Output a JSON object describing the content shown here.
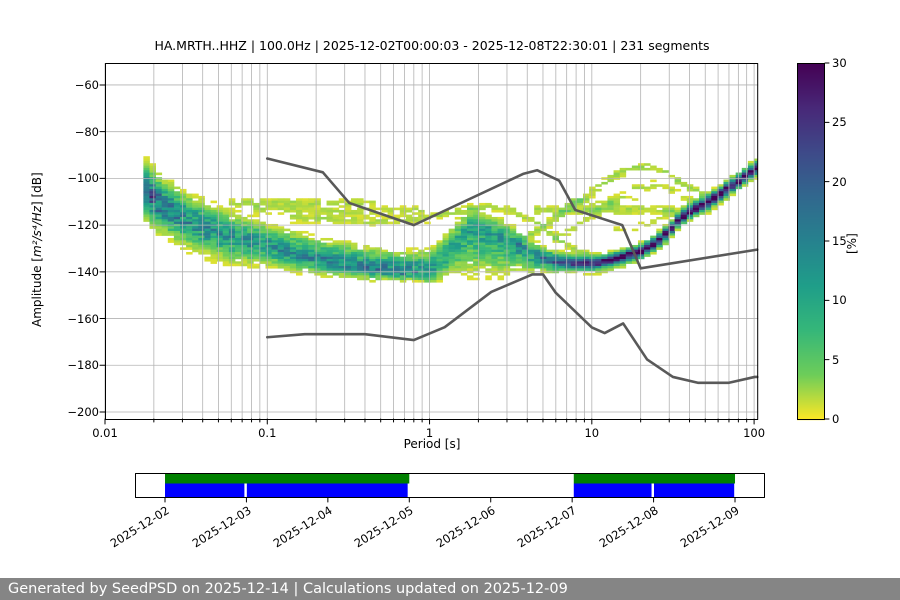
{
  "header": {
    "title": "HA.MRTH..HHZ | 100.0Hz | 2025-12-02T00:00:03 - 2025-12-08T22:30:01 | 231 segments"
  },
  "axes": {
    "xlabel": "Period [s]",
    "ylabel_prefix": "Amplitude [",
    "ylabel_math": "m²/s⁴/Hz",
    "ylabel_suffix": "] [dB]",
    "x_tick_values": [
      0.01,
      0.1,
      1,
      10,
      100
    ],
    "x_tick_labels": [
      "0.01",
      "0.1",
      "1",
      "10",
      "100"
    ],
    "y_tick_values": [
      -60,
      -80,
      -100,
      -120,
      -140,
      -160,
      -180,
      -200
    ],
    "y_tick_labels": [
      "−60",
      "−80",
      "−100",
      "−120",
      "−140",
      "−160",
      "−180",
      "−200"
    ],
    "grid_color": "#b3b3b3"
  },
  "colorbar": {
    "label": "[%]",
    "tick_values": [
      0,
      5,
      10,
      15,
      20,
      25,
      30
    ],
    "tick_labels": [
      "0",
      "5",
      "10",
      "15",
      "20",
      "25",
      "30"
    ],
    "min": 0,
    "max": 30,
    "colormap": "viridis_r"
  },
  "chart_data": {
    "type": "heatmap",
    "title": "HA.MRTH..HHZ | 100.0Hz | 2025-12-02T00:00:03 - 2025-12-08T22:30:01 | 231 segments",
    "xlabel": "Period [s]",
    "ylabel": "Amplitude [m²/s⁴/Hz] [dB]",
    "x_scale": "log",
    "xlim": [
      0.01,
      106
    ],
    "ylim": [
      -203,
      -50.6
    ],
    "grid": true,
    "probability_range_percent": [
      0,
      30
    ],
    "noise_model_color": "#595959",
    "noise_models": {
      "nhnm": [
        [
          0.1,
          -91.5
        ],
        [
          0.22,
          -97.4
        ],
        [
          0.32,
          -110.5
        ],
        [
          0.8,
          -120.0
        ],
        [
          3.8,
          -98.0
        ],
        [
          4.6,
          -96.5
        ],
        [
          6.3,
          -101.0
        ],
        [
          7.9,
          -113.5
        ],
        [
          15.4,
          -120.0
        ],
        [
          20.0,
          -138.5
        ],
        [
          106.0,
          -130.5
        ]
      ],
      "nlnm": [
        [
          0.1,
          -168.0
        ],
        [
          0.17,
          -166.7
        ],
        [
          0.4,
          -166.7
        ],
        [
          0.8,
          -169.2
        ],
        [
          1.24,
          -163.7
        ],
        [
          2.4,
          -148.6
        ],
        [
          4.3,
          -141.1
        ],
        [
          5.0,
          -141.1
        ],
        [
          6.0,
          -149.0
        ],
        [
          10.0,
          -163.8
        ],
        [
          12.0,
          -166.2
        ],
        [
          15.6,
          -162.1
        ],
        [
          21.9,
          -177.5
        ],
        [
          31.6,
          -185.0
        ],
        [
          45.0,
          -187.5
        ],
        [
          70.0,
          -187.5
        ],
        [
          101.0,
          -185.0
        ],
        [
          106.0,
          -185.0
        ]
      ]
    },
    "ppsd_band": {
      "period_min": 0.018,
      "period_max": 106,
      "bins_per_octave": 8,
      "mode_curve": [
        [
          0.018,
          -105
        ],
        [
          0.022,
          -111
        ],
        [
          0.03,
          -116.5
        ],
        [
          0.04,
          -120.5
        ],
        [
          0.06,
          -125
        ],
        [
          0.1,
          -129
        ],
        [
          0.16,
          -133
        ],
        [
          0.25,
          -136
        ],
        [
          0.4,
          -138.5
        ],
        [
          0.7,
          -139.8
        ],
        [
          1.0,
          -139.3
        ],
        [
          1.2,
          -135.5
        ],
        [
          1.45,
          -128.5
        ],
        [
          1.8,
          -120.8
        ],
        [
          2.2,
          -122.5
        ],
        [
          2.8,
          -124.5
        ],
        [
          3.5,
          -128.5
        ],
        [
          4.2,
          -132
        ],
        [
          5.0,
          -134.3
        ],
        [
          6.0,
          -135.6
        ],
        [
          8.0,
          -136.4
        ],
        [
          10.0,
          -136.6
        ],
        [
          12.0,
          -135.6
        ],
        [
          16.0,
          -133.4
        ],
        [
          20.0,
          -131.4
        ],
        [
          25.0,
          -127.4
        ],
        [
          30.0,
          -122.5
        ],
        [
          35.0,
          -117.2
        ],
        [
          42.0,
          -113.6
        ],
        [
          50.0,
          -111.0
        ],
        [
          60.0,
          -107.5
        ],
        [
          70.0,
          -104.0
        ],
        [
          85.0,
          -100.0
        ],
        [
          100.0,
          -96.5
        ],
        [
          106.0,
          -95.5
        ]
      ],
      "peak_percent_curve": [
        [
          0.018,
          20
        ],
        [
          0.03,
          14
        ],
        [
          0.06,
          12
        ],
        [
          0.15,
          13
        ],
        [
          0.4,
          15
        ],
        [
          0.8,
          15
        ],
        [
          1.1,
          10
        ],
        [
          1.6,
          10
        ],
        [
          2.5,
          11
        ],
        [
          4.0,
          12
        ],
        [
          5.0,
          15
        ],
        [
          6.0,
          18
        ],
        [
          8.0,
          26
        ],
        [
          10.0,
          29
        ],
        [
          12.0,
          30
        ],
        [
          80.0,
          30
        ],
        [
          106.0,
          28
        ]
      ],
      "sigma_up_curve": [
        [
          0.018,
          5.5
        ],
        [
          0.06,
          5.0
        ],
        [
          0.1,
          4.5
        ],
        [
          0.3,
          4.5
        ],
        [
          0.8,
          3.8
        ],
        [
          1.2,
          5.0
        ],
        [
          1.8,
          4.0
        ],
        [
          3.0,
          3.2
        ],
        [
          5.0,
          2.4
        ],
        [
          8.0,
          1.7
        ],
        [
          12.0,
          1.5
        ],
        [
          106.0,
          1.7
        ]
      ],
      "sigma_down_curve": [
        [
          0.018,
          6.0
        ],
        [
          0.06,
          5.5
        ],
        [
          0.1,
          4.0
        ],
        [
          0.3,
          2.4
        ],
        [
          0.8,
          1.9
        ],
        [
          1.3,
          4.0
        ],
        [
          1.8,
          9.5
        ],
        [
          2.8,
          8.0
        ],
        [
          3.6,
          5.0
        ],
        [
          5.0,
          2.6
        ],
        [
          8.0,
          1.5
        ],
        [
          12.0,
          1.4
        ],
        [
          106.0,
          1.6
        ]
      ]
    },
    "outlier_traces": [
      {
        "amp": 2.0,
        "dropout": 0.3,
        "points": [
          [
            0.06,
            -110.3
          ],
          [
            0.45,
            -110.3
          ]
        ]
      },
      {
        "amp": 1.8,
        "dropout": 0.35,
        "points": [
          [
            0.09,
            -113.0
          ],
          [
            0.3,
            -114.2
          ],
          [
            0.9,
            -113.5
          ]
        ]
      },
      {
        "amp": 2.0,
        "dropout": 0.4,
        "points": [
          [
            0.15,
            -117.0
          ],
          [
            0.5,
            -118.5
          ],
          [
            1.0,
            -117.0
          ],
          [
            1.6,
            -113.5
          ],
          [
            2.4,
            -111.8
          ],
          [
            3.2,
            -113.5
          ],
          [
            4.5,
            -119.0
          ],
          [
            6.0,
            -125.0
          ],
          [
            8.0,
            -130.5
          ],
          [
            10.0,
            -133.5
          ]
        ]
      },
      {
        "amp": 2.4,
        "dropout": 0.45,
        "points": [
          [
            3.5,
            -128.0
          ],
          [
            5.0,
            -121.0
          ],
          [
            7.0,
            -113.5
          ],
          [
            10.0,
            -105.5
          ],
          [
            14.0,
            -98.8
          ],
          [
            18.0,
            -95.3
          ],
          [
            23.0,
            -95.2
          ],
          [
            28.0,
            -97.5
          ],
          [
            35.0,
            -101.5
          ],
          [
            45.0,
            -106.0
          ],
          [
            55.0,
            -108.5
          ],
          [
            68.0,
            -107.0
          ]
        ]
      },
      {
        "amp": 1.8,
        "dropout": 0.5,
        "points": [
          [
            6.0,
            -126.0
          ],
          [
            9.0,
            -118.0
          ],
          [
            13.0,
            -110.5
          ],
          [
            18.0,
            -104.5
          ],
          [
            24.0,
            -102.8
          ],
          [
            32.0,
            -105.0
          ],
          [
            42.0,
            -110.0
          ],
          [
            52.0,
            -113.0
          ]
        ]
      },
      {
        "amp": 2.2,
        "dropout": 0.28,
        "points": [
          [
            4.5,
            -113.6
          ],
          [
            30.0,
            -113.6
          ]
        ]
      },
      {
        "amp": 1.6,
        "dropout": 0.5,
        "points": [
          [
            7.0,
            -109.8
          ],
          [
            19.0,
            -109.8
          ]
        ]
      },
      {
        "amp": 1.5,
        "dropout": 0.5,
        "points": [
          [
            14.0,
            -122.0
          ],
          [
            22.0,
            -120.0
          ],
          [
            30.0,
            -115.5
          ],
          [
            40.0,
            -111.8
          ]
        ]
      },
      {
        "amp": 1.4,
        "dropout": 0.5,
        "points": [
          [
            11.0,
            -140.0
          ],
          [
            20.0,
            -133.5
          ],
          [
            28.0,
            -127.5
          ]
        ]
      }
    ]
  },
  "timeline": {
    "date_labels": [
      "2025-12-02",
      "2025-12-03",
      "2025-12-04",
      "2025-12-05",
      "2025-12-06",
      "2025-12-07",
      "2025-12-08",
      "2025-12-09"
    ],
    "tick_days": [
      0,
      1,
      2,
      3,
      4,
      5,
      6,
      7
    ],
    "day_span": [
      -0.37,
      7.37
    ],
    "green_segments_days": [
      [
        0.0,
        3.0
      ],
      [
        5.02,
        7.0
      ]
    ],
    "blue_segments_days": [
      [
        0.0,
        0.975
      ],
      [
        1.005,
        2.98
      ],
      [
        5.02,
        5.975
      ],
      [
        6.005,
        6.99
      ]
    ],
    "green_color": "#008000",
    "blue_color": "#0000ff"
  },
  "footer": {
    "text": "Generated by SeedPSD on 2025-12-14 | Calculations updated on 2025-12-09",
    "bg": "#858585",
    "fg": "#ffffff"
  }
}
